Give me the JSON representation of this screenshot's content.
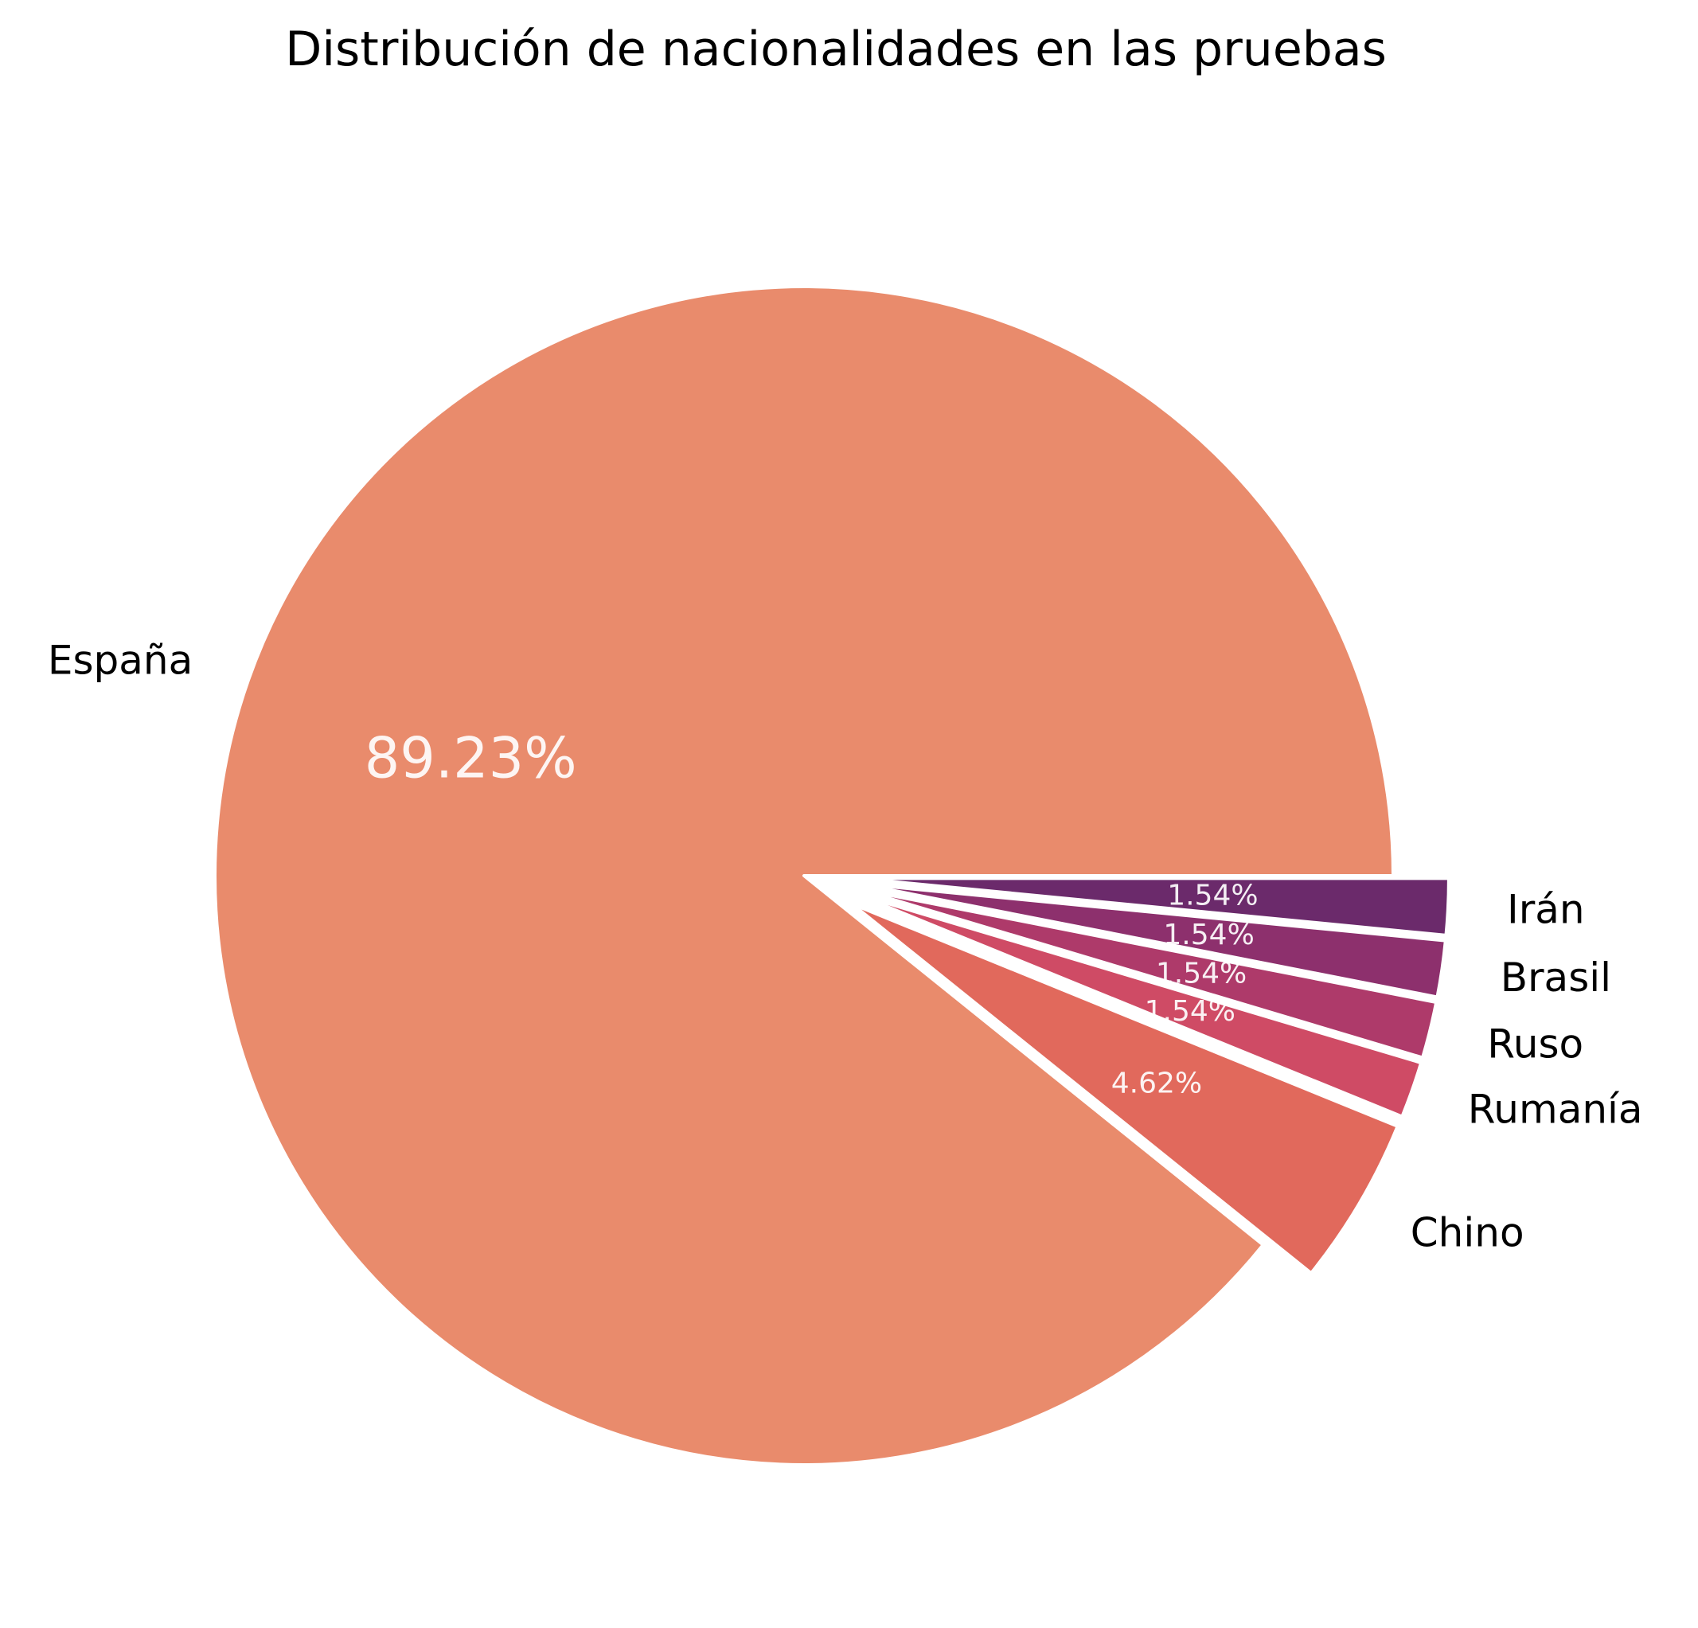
{
  "chart_data": {
    "type": "pie",
    "title": "Distribución de nacionalidades en las pruebas",
    "slices": [
      {
        "label": "España",
        "value": 89.23,
        "pct_label": "89.23%",
        "color": "#E98B6C",
        "exploded": false
      },
      {
        "label": "Chino",
        "value": 4.62,
        "pct_label": "4.62%",
        "color": "#E1695C",
        "exploded": true
      },
      {
        "label": "Rumanía",
        "value": 1.54,
        "pct_label": "1.54%",
        "color": "#CF4B65",
        "exploded": true
      },
      {
        "label": "Ruso",
        "value": 1.54,
        "pct_label": "1.54%",
        "color": "#AE3A6A",
        "exploded": true
      },
      {
        "label": "Brasil",
        "value": 1.54,
        "pct_label": "1.54%",
        "color": "#8D306D",
        "exploded": true
      },
      {
        "label": "Irán",
        "value": 1.54,
        "pct_label": "1.54%",
        "color": "#6B2A6B",
        "exploded": true
      }
    ],
    "start_angle_deg": 0,
    "direction": "counterclockwise",
    "legend": "none"
  }
}
